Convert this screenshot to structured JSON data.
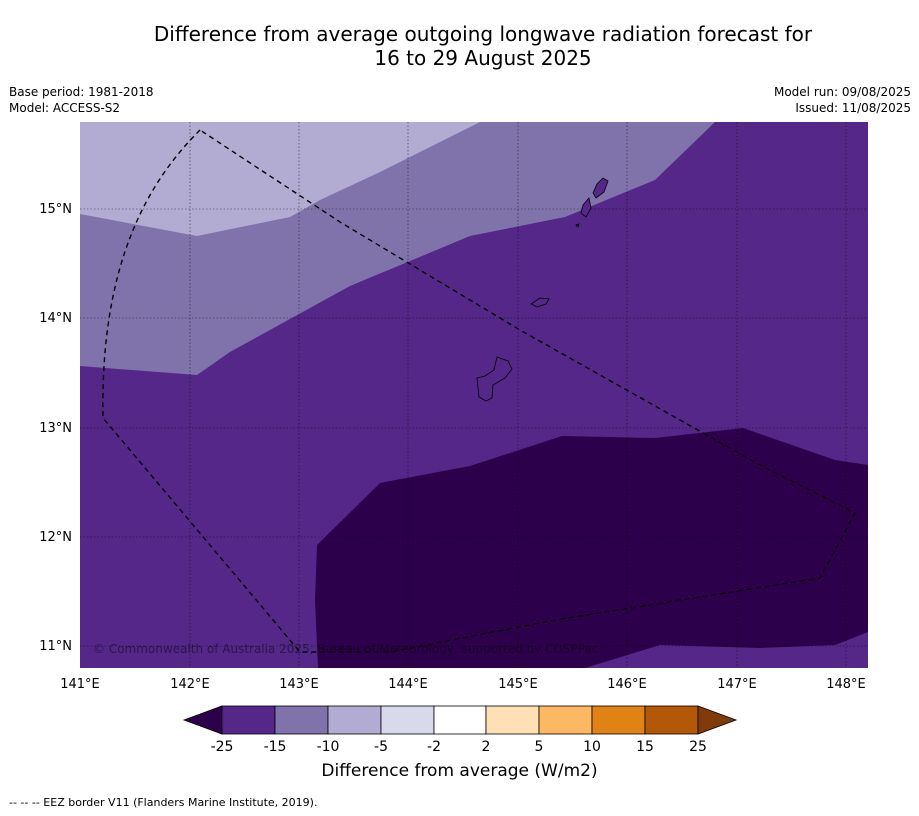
{
  "title": {
    "line1": "Difference from average outgoing longwave radiation forecast for",
    "line2": "16 to 29 August 2025"
  },
  "meta_left": {
    "base_period": "Base period: 1981-2018",
    "model": "Model: ACCESS-S2"
  },
  "meta_right": {
    "model_run": "Model run: 09/08/2025",
    "issued": "Issued: 11/08/2025"
  },
  "map": {
    "lat_labels": [
      "15°N",
      "14°N",
      "13°N",
      "12°N",
      "11°N"
    ],
    "lon_labels": [
      "141°E",
      "142°E",
      "143°E",
      "144°E",
      "145°E",
      "146°E",
      "147°E",
      "148°E"
    ],
    "copyright": "© Commonwealth of Australia 2025, Bureau of Meteorology, supported by COSPPac",
    "colors": {
      "lt_minus25": "#2d004b",
      "m25_m15": "#542788",
      "m15_m10": "#8073ac",
      "m10_m5": "#b2abd2",
      "m5_m2": "#d8daeb",
      "m2_2": "#ffffff",
      "p2_5": "#fee0b6",
      "p5_10": "#fdb863",
      "p10_15": "#e08214",
      "p15_25": "#b35806",
      "gt_25": "#7f3b08"
    }
  },
  "colorbar": {
    "ticks": [
      "-25",
      "-15",
      "-10",
      "-5",
      "-2",
      "2",
      "5",
      "10",
      "15",
      "25"
    ],
    "label": "Difference from average (W/m2)"
  },
  "footer": "--  --  -- EEZ border V11 (Flanders Marine Institute, 2019)."
}
